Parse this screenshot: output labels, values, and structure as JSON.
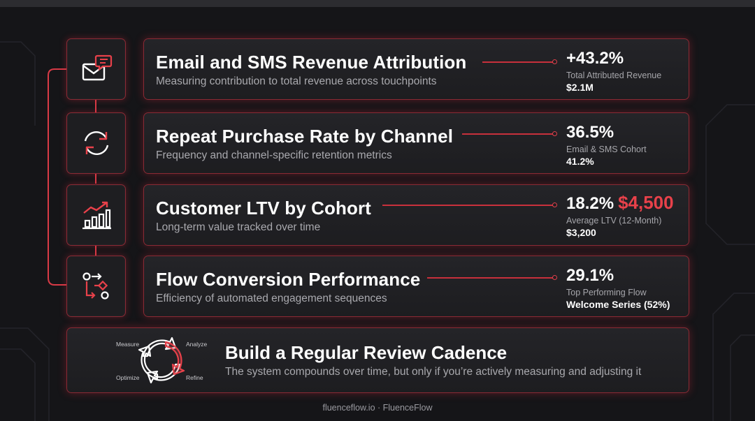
{
  "rows": [
    {
      "title": "Email and SMS Revenue Attribution",
      "subtitle": "Measuring contribution to total revenue across touchpoints",
      "value": "+43.2%",
      "label": "Total Attributed Revenue",
      "detail": "$2.1M",
      "icon": "email-sms-icon"
    },
    {
      "title": "Repeat Purchase Rate by Channel",
      "subtitle": "Frequency and channel-specific retention metrics",
      "value": "36.5%",
      "label": "Email & SMS Cohort",
      "detail": "41.2%",
      "icon": "refresh-cycle-icon"
    },
    {
      "title": "Customer LTV by Cohort",
      "subtitle": "Long-term value tracked over time",
      "value": "18.2%",
      "accent_value": "$4,500",
      "label": "Average LTV (12-Month)",
      "detail": "$3,200",
      "icon": "growth-chart-icon"
    },
    {
      "title": "Flow Conversion Performance",
      "subtitle": "Efficiency of automated engagement sequences",
      "value": "29.1%",
      "label": "Top Performing Flow",
      "detail": "Welcome Series (52%)",
      "icon": "flow-diagram-icon"
    }
  ],
  "cycle": {
    "measure": "Measure",
    "analyze": "Analyze",
    "optimize": "Optimize",
    "refine": "Refine"
  },
  "bottom": {
    "title": "Build a Regular Review Cadence",
    "subtitle": "The system compounds over time, but only if you’re actively measuring and adjusting it"
  },
  "footer": "fluenceflow.io · FluenceFlow",
  "colors": {
    "background": "#151518",
    "accent": "#e8414a",
    "card_border": "#8a2a34",
    "text_muted": "#a9a9ae"
  }
}
